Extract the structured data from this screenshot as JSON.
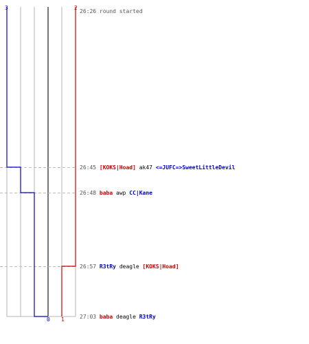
{
  "colors": {
    "team_blue": "#0000cc",
    "team_red": "#cc0000",
    "time_text": "#555555",
    "grid": "#b4b4b4",
    "dashed": "#bbbbbb",
    "center": "#777777",
    "text_default": "#000000"
  },
  "scores": {
    "blue_start": "3",
    "red_start": "2",
    "blue_end": "0",
    "red_end": "1"
  },
  "events": [
    {
      "time": "26:26",
      "parts": [
        {
          "text": "round started",
          "team": "neutral"
        }
      ],
      "blue_alive": 3,
      "red_alive": 2,
      "divider": false
    },
    {
      "time": "26:45",
      "parts": [
        {
          "text": "[KOKS|Hoad]",
          "team": "red"
        },
        {
          "text": "ak47",
          "team": "weapon"
        },
        {
          "text": "<=JUFC=>SweetLittleDevil",
          "team": "blue"
        }
      ],
      "blue_alive": 2,
      "red_alive": 2,
      "divider": true
    },
    {
      "time": "26:48",
      "parts": [
        {
          "text": "baba",
          "team": "red"
        },
        {
          "text": "awp",
          "team": "weapon"
        },
        {
          "text": "CC|Kane",
          "team": "blue"
        }
      ],
      "blue_alive": 1,
      "red_alive": 2,
      "divider": true
    },
    {
      "time": "26:57",
      "parts": [
        {
          "text": "R3tRy",
          "team": "blue"
        },
        {
          "text": "deagle",
          "team": "weapon"
        },
        {
          "text": "[KOKS|Hoad]",
          "team": "red"
        }
      ],
      "blue_alive": 1,
      "red_alive": 1,
      "divider": true
    },
    {
      "time": "27:03",
      "parts": [
        {
          "text": "baba",
          "team": "red"
        },
        {
          "text": "deagle",
          "team": "weapon"
        },
        {
          "text": "R3tRy",
          "team": "blue"
        }
      ],
      "blue_alive": 0,
      "red_alive": 1,
      "divider": false
    }
  ]
}
